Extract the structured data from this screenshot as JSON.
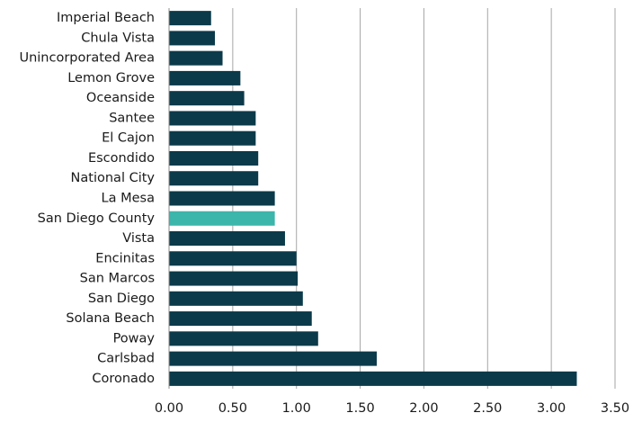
{
  "chart_data": {
    "type": "bar",
    "orientation": "horizontal",
    "categories": [
      "Imperial Beach",
      "Chula Vista",
      "Unincorporated Area",
      "Lemon Grove",
      "Oceanside",
      "Santee",
      "El Cajon",
      "Escondido",
      "National City",
      "La Mesa",
      "San Diego County",
      "Vista",
      "Encinitas",
      "San Marcos",
      "San Diego",
      "Solana Beach",
      "Poway",
      "Carlsbad",
      "Coronado"
    ],
    "values": [
      0.33,
      0.36,
      0.42,
      0.56,
      0.59,
      0.68,
      0.68,
      0.7,
      0.7,
      0.83,
      0.83,
      0.91,
      1.0,
      1.01,
      1.05,
      1.12,
      1.17,
      1.63,
      3.2
    ],
    "highlight": "San Diego County",
    "xlim": [
      0,
      3.5
    ],
    "x_ticks": [
      "0.00",
      "0.50",
      "1.00",
      "1.50",
      "2.00",
      "2.50",
      "3.00",
      "3.50"
    ],
    "grid": "vertical",
    "colors": {
      "bar": "#0b3a4a",
      "highlight": "#3cb5ab"
    }
  }
}
